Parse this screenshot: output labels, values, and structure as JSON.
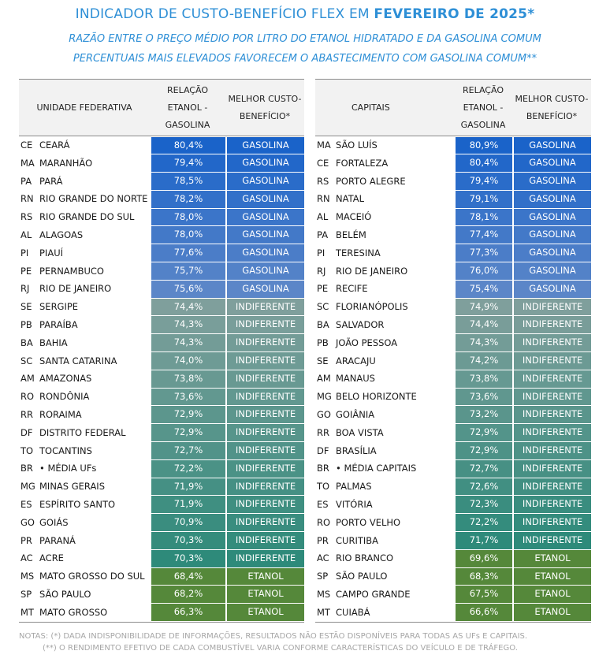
{
  "title": {
    "prefix": "INDICADOR  DE CUSTO-BENEFÍCIO FLEX EM ",
    "highlight": "FEVEREIRO DE 2025*"
  },
  "subtitle1": "RAZÃO ENTRE O PREÇO MÉDIO POR LITRO DO ETANOL HIDRATADO E DA GASOLINA COMUM",
  "subtitle2": "PERCENTUAIS MAIS ELEVADOS FAVORECEM O ABASTECIMENTO COM GASOLINA COMUM**",
  "colors": {
    "gasolina_from": "#1a63c9",
    "gasolina_to": "#5b86c8",
    "indiferente_from": "#7f9f9c",
    "indiferente_to": "#2e8a7a",
    "etanol": "#55883a"
  },
  "left": {
    "headers": {
      "col1": "UNIDADE FEDERATIVA",
      "col2": "RELAÇÃO ETANOL - GASOLINA",
      "col3": "MELHOR CUSTO-BENEFÍCIO*"
    },
    "rows": [
      {
        "uf": "CE",
        "name": "CEARÁ",
        "value": "80,4%",
        "result": "GASOLINA"
      },
      {
        "uf": "MA",
        "name": "MARANHÃO",
        "value": "79,4%",
        "result": "GASOLINA"
      },
      {
        "uf": "PA",
        "name": "PARÁ",
        "value": "78,5%",
        "result": "GASOLINA"
      },
      {
        "uf": "RN",
        "name": "RIO GRANDE DO NORTE",
        "value": "78,2%",
        "result": "GASOLINA"
      },
      {
        "uf": "RS",
        "name": "RIO GRANDE DO SUL",
        "value": "78,0%",
        "result": "GASOLINA"
      },
      {
        "uf": "AL",
        "name": "ALAGOAS",
        "value": "78,0%",
        "result": "GASOLINA"
      },
      {
        "uf": "PI",
        "name": "PIAUÍ",
        "value": "77,6%",
        "result": "GASOLINA"
      },
      {
        "uf": "PE",
        "name": "PERNAMBUCO",
        "value": "75,7%",
        "result": "GASOLINA"
      },
      {
        "uf": "RJ",
        "name": "RIO DE JANEIRO",
        "value": "75,6%",
        "result": "GASOLINA"
      },
      {
        "uf": "SE",
        "name": "SERGIPE",
        "value": "74,4%",
        "result": "INDIFERENTE"
      },
      {
        "uf": "PB",
        "name": "PARAÍBA",
        "value": "74,3%",
        "result": "INDIFERENTE"
      },
      {
        "uf": "BA",
        "name": "BAHIA",
        "value": "74,3%",
        "result": "INDIFERENTE"
      },
      {
        "uf": "SC",
        "name": "SANTA CATARINA",
        "value": "74,0%",
        "result": "INDIFERENTE"
      },
      {
        "uf": "AM",
        "name": "AMAZONAS",
        "value": "73,8%",
        "result": "INDIFERENTE"
      },
      {
        "uf": "RO",
        "name": "RONDÔNIA",
        "value": "73,6%",
        "result": "INDIFERENTE"
      },
      {
        "uf": "RR",
        "name": "RORAIMA",
        "value": "72,9%",
        "result": "INDIFERENTE"
      },
      {
        "uf": "DF",
        "name": "DISTRITO FEDERAL",
        "value": "72,9%",
        "result": "INDIFERENTE"
      },
      {
        "uf": "TO",
        "name": "TOCANTINS",
        "value": "72,7%",
        "result": "INDIFERENTE"
      },
      {
        "uf": "BR",
        "name": "• MÉDIA UFs",
        "value": "72,2%",
        "result": "INDIFERENTE"
      },
      {
        "uf": "MG",
        "name": "MINAS GERAIS",
        "value": "71,9%",
        "result": "INDIFERENTE"
      },
      {
        "uf": "ES",
        "name": "ESPÍRITO SANTO",
        "value": "71,9%",
        "result": "INDIFERENTE"
      },
      {
        "uf": "GO",
        "name": "GOIÁS",
        "value": "70,9%",
        "result": "INDIFERENTE"
      },
      {
        "uf": "PR",
        "name": "PARANÁ",
        "value": "70,3%",
        "result": "INDIFERENTE"
      },
      {
        "uf": "AC",
        "name": "ACRE",
        "value": "70,3%",
        "result": "INDIFERENTE"
      },
      {
        "uf": "MS",
        "name": "MATO GROSSO DO SUL",
        "value": "68,4%",
        "result": "ETANOL"
      },
      {
        "uf": "SP",
        "name": "SÃO PAULO",
        "value": "68,2%",
        "result": "ETANOL"
      },
      {
        "uf": "MT",
        "name": "MATO GROSSO",
        "value": "66,3%",
        "result": "ETANOL"
      }
    ]
  },
  "right": {
    "headers": {
      "col1": "CAPITAIS",
      "col2": "RELAÇÃO ETANOL - GASOLINA",
      "col3": "MELHOR CUSTO-BENEFÍCIO*"
    },
    "rows": [
      {
        "uf": "MA",
        "name": "SÃO LUÍS",
        "value": "80,9%",
        "result": "GASOLINA"
      },
      {
        "uf": "CE",
        "name": "FORTALEZA",
        "value": "80,4%",
        "result": "GASOLINA"
      },
      {
        "uf": "RS",
        "name": "PORTO ALEGRE",
        "value": "79,4%",
        "result": "GASOLINA"
      },
      {
        "uf": "RN",
        "name": "NATAL",
        "value": "79,1%",
        "result": "GASOLINA"
      },
      {
        "uf": "AL",
        "name": "MACEIÓ",
        "value": "78,1%",
        "result": "GASOLINA"
      },
      {
        "uf": "PA",
        "name": "BELÉM",
        "value": "77,4%",
        "result": "GASOLINA"
      },
      {
        "uf": "PI",
        "name": "TERESINA",
        "value": "77,3%",
        "result": "GASOLINA"
      },
      {
        "uf": "RJ",
        "name": "RIO DE JANEIRO",
        "value": "76,0%",
        "result": "GASOLINA"
      },
      {
        "uf": "PE",
        "name": "RECIFE",
        "value": "75,4%",
        "result": "GASOLINA"
      },
      {
        "uf": "SC",
        "name": "FLORIANÓPOLIS",
        "value": "74,9%",
        "result": "INDIFERENTE"
      },
      {
        "uf": "BA",
        "name": "SALVADOR",
        "value": "74,4%",
        "result": "INDIFERENTE"
      },
      {
        "uf": "PB",
        "name": "JOÃO PESSOA",
        "value": "74,3%",
        "result": "INDIFERENTE"
      },
      {
        "uf": "SE",
        "name": "ARACAJU",
        "value": "74,2%",
        "result": "INDIFERENTE"
      },
      {
        "uf": "AM",
        "name": "MANAUS",
        "value": "73,8%",
        "result": "INDIFERENTE"
      },
      {
        "uf": "MG",
        "name": "BELO HORIZONTE",
        "value": "73,6%",
        "result": "INDIFERENTE"
      },
      {
        "uf": "GO",
        "name": "GOIÂNIA",
        "value": "73,2%",
        "result": "INDIFERENTE"
      },
      {
        "uf": "RR",
        "name": "BOA VISTA",
        "value": "72,9%",
        "result": "INDIFERENTE"
      },
      {
        "uf": "DF",
        "name": "BRASÍLIA",
        "value": "72,9%",
        "result": "INDIFERENTE"
      },
      {
        "uf": "BR",
        "name": "• MÉDIA CAPITAIS",
        "value": "72,7%",
        "result": "INDIFERENTE"
      },
      {
        "uf": "TO",
        "name": "PALMAS",
        "value": "72,6%",
        "result": "INDIFERENTE"
      },
      {
        "uf": "ES",
        "name": "VITÓRIA",
        "value": "72,3%",
        "result": "INDIFERENTE"
      },
      {
        "uf": "RO",
        "name": "PORTO VELHO",
        "value": "72,2%",
        "result": "INDIFERENTE"
      },
      {
        "uf": "PR",
        "name": "CURITIBA",
        "value": "71,7%",
        "result": "INDIFERENTE"
      },
      {
        "uf": "AC",
        "name": "RIO BRANCO",
        "value": "69,6%",
        "result": "ETANOL"
      },
      {
        "uf": "SP",
        "name": "SÃO PAULO",
        "value": "68,3%",
        "result": "ETANOL"
      },
      {
        "uf": "MS",
        "name": "CAMPO GRANDE",
        "value": "67,5%",
        "result": "ETANOL"
      },
      {
        "uf": "MT",
        "name": "CUIABÁ",
        "value": "66,6%",
        "result": "ETANOL"
      }
    ]
  },
  "notes": {
    "line1": "NOTAS:  (*) DADA INDISPONIBILIDADE DE INFORMAÇÕES, RESULTADOS NÃO ESTÃO DISPONÍVEIS PARA TODAS AS UFs E CAPITAIS.",
    "line2": "(**) O RENDIMENTO EFETIVO DE CADA COMBUSTÍVEL VARIA CONFORME CARACTERÍSTICAS DO VEÍCULO E DE TRÁFEGO."
  }
}
